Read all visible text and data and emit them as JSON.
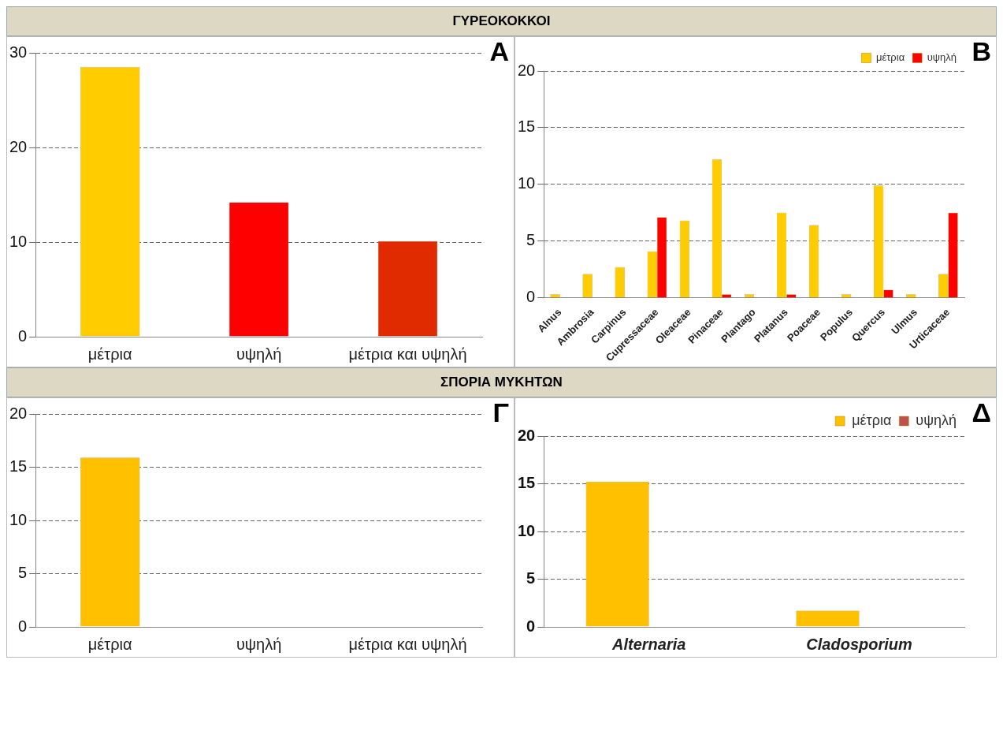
{
  "chart_data": [
    {
      "type": "bar",
      "title": "ΓΥΡΕΟΚΟΚΚΟΙ",
      "annotations": [
        "A"
      ],
      "categories": [
        "μέτρια",
        "υψηλή",
        "μέτρια και υψηλή"
      ],
      "values": [
        28.5,
        14.2,
        10.1
      ],
      "colors": [
        "#ffcc00",
        "#ff0000",
        "#e02a00"
      ],
      "ylim": [
        0,
        30
      ],
      "yticks": [
        0,
        10,
        20,
        30
      ],
      "grid": "y",
      "legend": false
    },
    {
      "type": "bar",
      "annotations": [
        "B"
      ],
      "categories": [
        "Alnus",
        "Ambrosia",
        "Carpinus",
        "Cupressaceae",
        "Oleaceae",
        "Pinaceae",
        "Plantago",
        "Platanus",
        "Poaceae",
        "Populus",
        "Quercus",
        "Ulmus",
        "Urticaceae"
      ],
      "series": [
        {
          "name": "μέτρια",
          "color": "#ffcc00",
          "values": [
            0.3,
            2.1,
            2.7,
            4.1,
            6.8,
            12.2,
            0.3,
            7.5,
            6.4,
            0.3,
            9.9,
            0.3,
            2.1
          ]
        },
        {
          "name": "υψηλή",
          "color": "#ff0000",
          "values": [
            null,
            null,
            null,
            7.1,
            null,
            0.3,
            null,
            0.3,
            null,
            null,
            0.7,
            null,
            7.5
          ]
        }
      ],
      "ylim": [
        0,
        20
      ],
      "yticks": [
        0,
        5,
        10,
        15,
        20
      ],
      "grid": "y",
      "legend": "top right"
    },
    {
      "type": "bar",
      "title": "ΣΠΟΡΙΑ ΜΥΚΗΤΩΝ",
      "annotations": [
        "Γ"
      ],
      "categories": [
        "μέτρια",
        "υψηλή",
        "μέτρια και υψηλή"
      ],
      "values": [
        15.9,
        null,
        null
      ],
      "colors": [
        "#ffc000",
        "#ffc000",
        "#ffc000"
      ],
      "ylim": [
        0,
        20
      ],
      "yticks": [
        0,
        5,
        10,
        15,
        20
      ],
      "grid": "y",
      "legend": false
    },
    {
      "type": "bar",
      "annotations": [
        "Δ"
      ],
      "categories": [
        "Alternaria",
        "Cladosporium"
      ],
      "series": [
        {
          "name": "μέτρια",
          "color": "#ffc000",
          "values": [
            15.2,
            1.7
          ]
        },
        {
          "name": "υψηλή",
          "color": "#c0504d",
          "values": [
            null,
            null
          ]
        }
      ],
      "ylim": [
        0,
        20
      ],
      "yticks": [
        0,
        5,
        10,
        15,
        20
      ],
      "grid": "y",
      "legend": "top right"
    }
  ]
}
